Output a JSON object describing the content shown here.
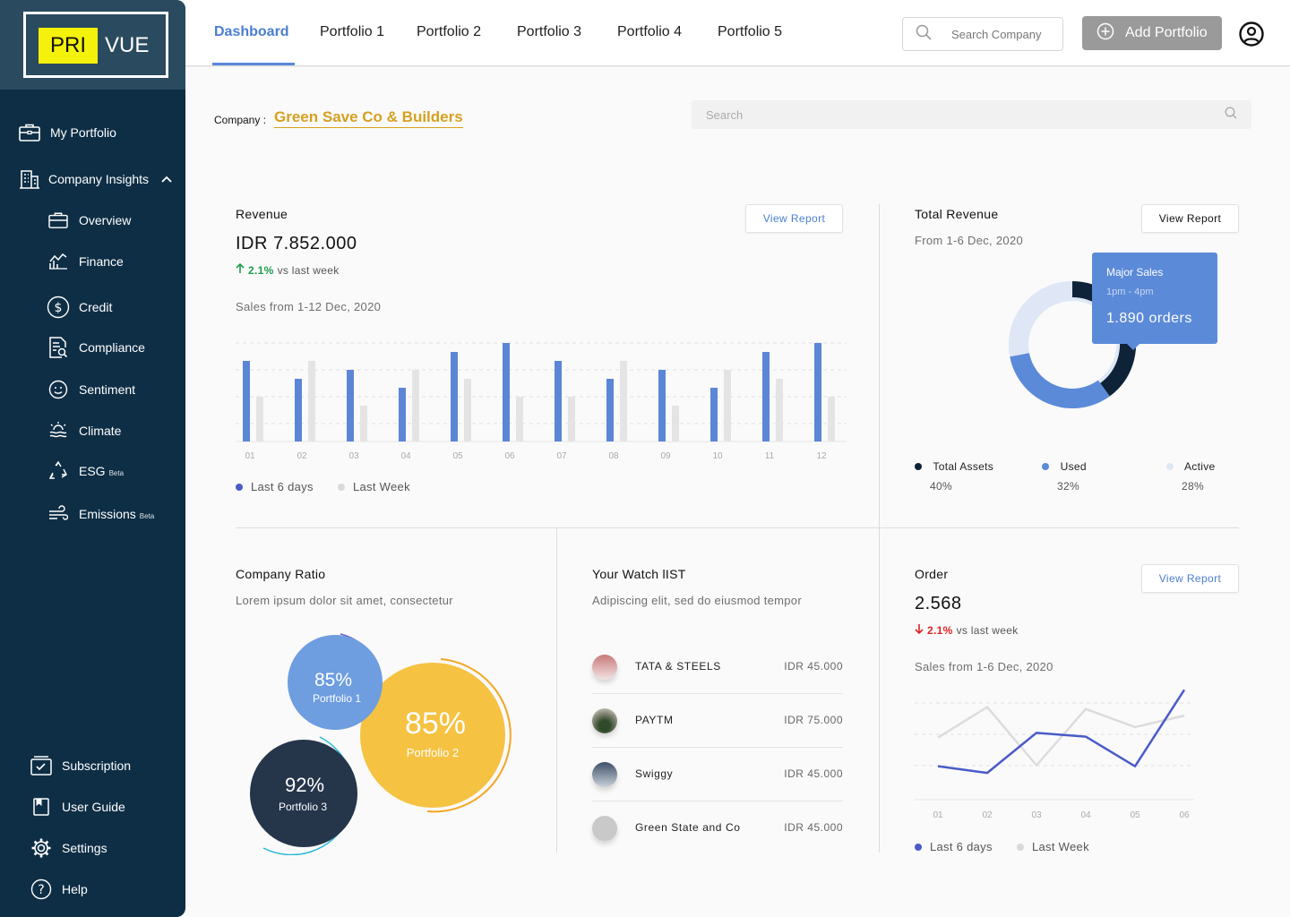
{
  "logo": {
    "part1": "PRI",
    "part2": "VUE"
  },
  "sidebar": {
    "items": [
      {
        "label": "My Portfolio",
        "icon": "briefcase-icon"
      },
      {
        "label": "Company Insights",
        "icon": "building-icon"
      },
      {
        "label": "Overview",
        "icon": "briefcase-icon"
      },
      {
        "label": "Finance",
        "icon": "finance-chart-icon"
      },
      {
        "label": "Credit",
        "icon": "dollar-icon"
      },
      {
        "label": "Compliance",
        "icon": "document-search-icon"
      },
      {
        "label": "Sentiment",
        "icon": "smile-icon"
      },
      {
        "label": "Climate",
        "icon": "climate-icon"
      },
      {
        "label": "ESG",
        "icon": "recycle-icon",
        "badge": "Beta"
      },
      {
        "label": "Emissions",
        "icon": "wind-icon",
        "badge": "Beta"
      }
    ],
    "bottom": [
      {
        "label": "Subscription",
        "icon": "subscription-icon"
      },
      {
        "label": "User Guide",
        "icon": "book-icon"
      },
      {
        "label": "Settings",
        "icon": "gear-icon"
      },
      {
        "label": "Help",
        "icon": "help-icon"
      }
    ]
  },
  "topbar": {
    "tabs": [
      "Dashboard",
      "Portfolio 1",
      "Portfolio 2",
      "Portfolio 3",
      "Portfolio 4",
      "Portfolio 5"
    ],
    "active_tab": "Dashboard",
    "search_placeholder": "Search Company",
    "add_label": "Add Portfolio"
  },
  "company": {
    "label": "Company :",
    "name": "Green Save Co & Builders",
    "search_placeholder": "Search"
  },
  "revenue": {
    "title": "Revenue",
    "value": "IDR 7.852.000",
    "delta": "2.1%",
    "delta_text": "vs last week",
    "subtitle": "Sales from 1-12 Dec, 2020",
    "button": "View Report"
  },
  "total_revenue": {
    "title": "Total Revenue",
    "subtitle": "From 1-6 Dec, 2020",
    "button": "View Report",
    "tooltip": {
      "title": "Major Sales",
      "time": "1pm - 4pm",
      "value": "1.890 orders"
    },
    "legend": [
      {
        "label": "Total Assets",
        "value": "40%",
        "color": "#0e2337"
      },
      {
        "label": "Used",
        "value": "32%",
        "color": "#5b8ad8"
      },
      {
        "label": "Active",
        "value": "28%",
        "color": "#dfe7f6"
      }
    ]
  },
  "ratio": {
    "title": "Company Ratio",
    "subtitle": "Lorem ipsum dolor sit amet, consectetur",
    "bubbles": [
      {
        "value": "85%",
        "label": "Portfolio 1",
        "color": "#6e9de0"
      },
      {
        "value": "85%",
        "label": "Portfolio 2",
        "color": "#f5c242"
      },
      {
        "value": "92%",
        "label": "Portfolio 3",
        "color": "#25354a"
      }
    ]
  },
  "watchlist": {
    "title": "Your Watch lIST",
    "subtitle": "Adipiscing elit, sed do eiusmod tempor",
    "rows": [
      {
        "name": "TATA & STEELS",
        "amount": "IDR 45.000"
      },
      {
        "name": "PAYTM",
        "amount": "IDR 75.000"
      },
      {
        "name": "Swiggy",
        "amount": "IDR 45.000"
      },
      {
        "name": "Green State and Co",
        "amount": "IDR 45.000"
      }
    ]
  },
  "order": {
    "title": "Order",
    "value": "2.568",
    "delta": "2.1%",
    "delta_text": "vs last week",
    "subtitle": "Sales from 1-6 Dec, 2020",
    "button": "View Report"
  },
  "chart_data": [
    {
      "type": "bar",
      "categories": [
        "01",
        "02",
        "03",
        "04",
        "05",
        "06",
        "07",
        "08",
        "09",
        "10",
        "11",
        "12"
      ],
      "series": [
        {
          "name": "Last 6 days",
          "values": [
            9,
            7,
            8,
            6,
            10,
            11,
            9,
            7,
            8,
            6,
            10,
            11
          ],
          "color": "#5b86d6"
        },
        {
          "name": "Last Week",
          "values": [
            5,
            9,
            4,
            8,
            7,
            5,
            5,
            9,
            4,
            8,
            7,
            5
          ],
          "color": "#e4e4e4"
        }
      ],
      "ylim": [
        0,
        11
      ]
    },
    {
      "type": "pie",
      "categories": [
        "Total Assets",
        "Used",
        "Active"
      ],
      "values": [
        40,
        32,
        28
      ]
    },
    {
      "type": "line",
      "x": [
        "01",
        "02",
        "03",
        "04",
        "05",
        "06"
      ],
      "series": [
        {
          "name": "Last 6 days",
          "values": [
            3.5,
            2.8,
            7.0,
            6.6,
            3.5,
            11.5
          ],
          "color": "#4a5bc8"
        },
        {
          "name": "Last Week",
          "values": [
            6.5,
            9.7,
            3.6,
            9.5,
            7.6,
            8.8
          ],
          "color": "#dcdcdc"
        }
      ],
      "ylim": [
        0,
        12
      ]
    }
  ]
}
